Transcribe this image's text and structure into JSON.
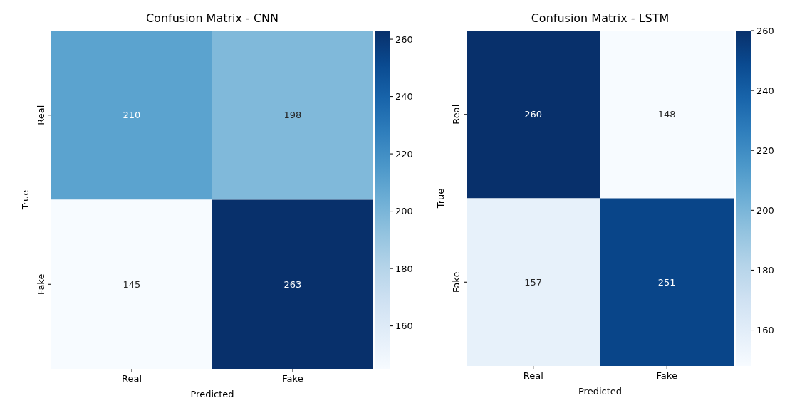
{
  "chart_data": [
    {
      "type": "heatmap",
      "title": "Confusion Matrix - CNN",
      "xlabel": "Predicted",
      "ylabel": "True",
      "categories": [
        "Real",
        "Fake"
      ],
      "y_categories": [
        "Real",
        "Fake"
      ],
      "cells": [
        [
          210,
          198
        ],
        [
          145,
          263
        ]
      ],
      "clim": [
        145,
        263
      ],
      "cticks": [
        160,
        180,
        200,
        220,
        240,
        260
      ],
      "data_labels": true
    },
    {
      "type": "heatmap",
      "title": "Confusion Matrix - LSTM",
      "xlabel": "Predicted",
      "ylabel": "True",
      "categories": [
        "Real",
        "Fake"
      ],
      "y_categories": [
        "Real",
        "Fake"
      ],
      "cells": [
        [
          260,
          148
        ],
        [
          157,
          251
        ]
      ],
      "clim": [
        148,
        260
      ],
      "cticks": [
        160,
        180,
        200,
        220,
        240,
        260
      ],
      "data_labels": true
    }
  ]
}
